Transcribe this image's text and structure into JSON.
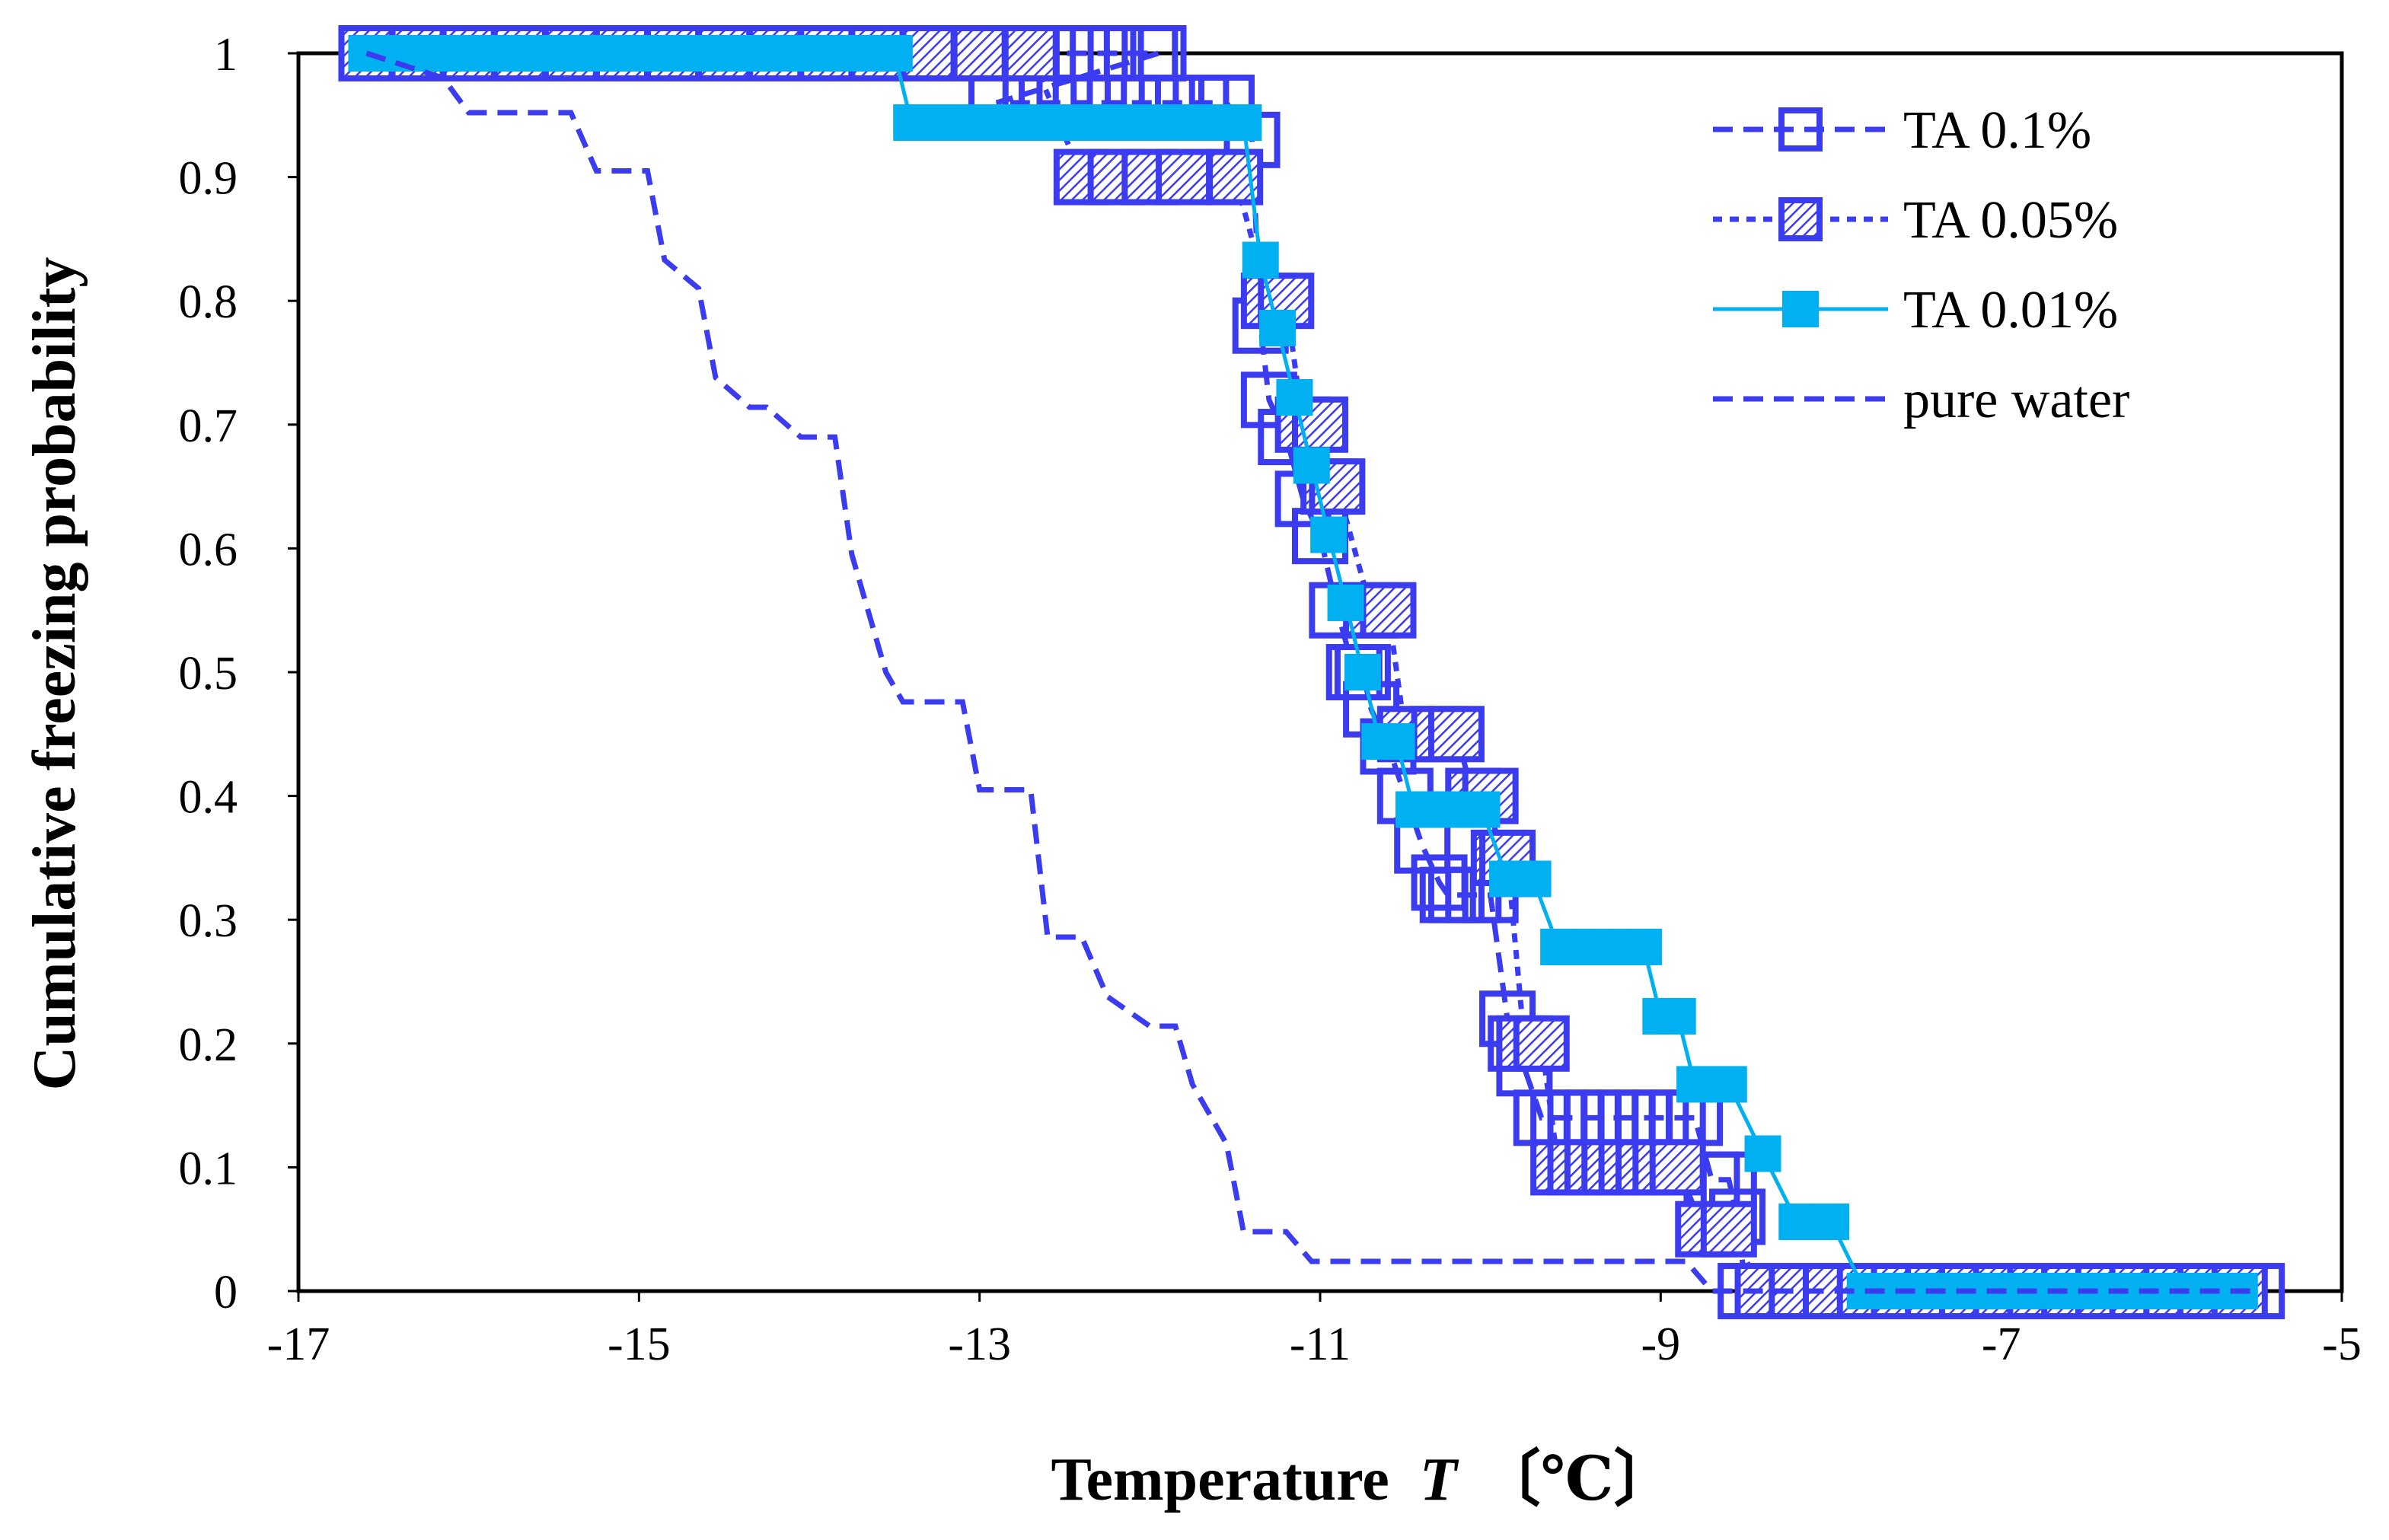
{
  "chart_data": {
    "type": "line",
    "title": "",
    "xlabel": "Temperature",
    "xlabel_symbol": "T",
    "xlabel_unit": "〔℃〕",
    "ylabel": "Cumulative freezing probability",
    "xlim": [
      -17,
      -5
    ],
    "ylim": [
      0,
      1
    ],
    "x_ticks": [
      -17,
      -15,
      -13,
      -11,
      -9,
      -7,
      -5
    ],
    "x_tick_labels": [
      "-17",
      "-15",
      "-13",
      "-11",
      "-9",
      "-7",
      "-5"
    ],
    "y_ticks": [
      0,
      0.1,
      0.2,
      0.3,
      0.4,
      0.5,
      0.6,
      0.7,
      0.8,
      0.9,
      1
    ],
    "y_tick_labels": [
      "0",
      "0.1",
      "0.2",
      "0.3",
      "0.4",
      "0.5",
      "0.6",
      "0.7",
      "0.8",
      "0.9",
      "1"
    ],
    "grid": false,
    "legend_position": "top-right",
    "series": [
      {
        "name": "TA 0.1%",
        "color": "#3b3bf0",
        "line": "dashed",
        "marker": "open-square",
        "x": [
          -16.6,
          -16.4,
          -16.2,
          -16.0,
          -15.8,
          -15.6,
          -15.4,
          -15.2,
          -15.0,
          -14.8,
          -14.6,
          -14.4,
          -14.2,
          -14.0,
          -13.8,
          -13.6,
          -13.4,
          -13.2,
          -13.0,
          -12.8,
          -12.6,
          -12.4,
          -12.2,
          -12.0,
          -11.95,
          -12.9,
          -12.7,
          -12.5,
          -12.3,
          -12.1,
          -11.9,
          -11.7,
          -11.55,
          -11.4,
          -11.35,
          -11.3,
          -11.2,
          -11.1,
          -11.0,
          -10.9,
          -10.8,
          -10.75,
          -10.7,
          -10.6,
          -10.5,
          -10.4,
          -10.3,
          -10.25,
          -10.2,
          -10.1,
          -10.0,
          -9.9,
          -9.85,
          -9.8,
          -9.7,
          -9.6,
          -9.5,
          -9.4,
          -9.3,
          -9.2,
          -9.1,
          -9.0,
          -8.9,
          -8.8,
          -8.7,
          -8.6,
          -8.55,
          -8.5,
          -8.3,
          -8.1,
          -7.9,
          -7.7,
          -7.5,
          -7.3,
          -7.1,
          -6.9,
          -6.7,
          -6.5,
          -6.3,
          -6.1,
          -5.9,
          -5.7,
          -5.5
        ],
        "y": [
          1,
          1,
          1,
          1,
          1,
          1,
          1,
          1,
          1,
          1,
          1,
          1,
          1,
          1,
          1,
          1,
          1,
          1,
          1,
          1,
          1,
          1,
          1,
          1,
          1,
          0.96,
          0.96,
          0.96,
          0.96,
          0.96,
          0.96,
          0.96,
          0.96,
          0.93,
          0.78,
          0.72,
          0.69,
          0.64,
          0.61,
          0.55,
          0.5,
          0.5,
          0.47,
          0.44,
          0.4,
          0.36,
          0.33,
          0.32,
          0.32,
          0.32,
          0.32,
          0.22,
          0.2,
          0.18,
          0.14,
          0.14,
          0.14,
          0.14,
          0.14,
          0.14,
          0.14,
          0.14,
          0.14,
          0.14,
          0.09,
          0.09,
          0.06,
          0.0,
          0,
          0,
          0,
          0,
          0,
          0,
          0,
          0,
          0,
          0,
          0,
          0,
          0,
          0,
          0
        ]
      },
      {
        "name": "TA 0.05%",
        "color": "#3b3bf0",
        "line": "dotted",
        "marker": "hatched-square",
        "x": [
          -16.6,
          -16.3,
          -16.0,
          -15.7,
          -15.4,
          -15.1,
          -14.8,
          -14.5,
          -14.2,
          -13.9,
          -13.6,
          -13.3,
          -13.0,
          -12.7,
          -12.4,
          -12.2,
          -12.0,
          -11.8,
          -11.5,
          -11.3,
          -11.2,
          -11.1,
          -11.0,
          -10.95,
          -10.9,
          -10.7,
          -10.6,
          -10.5,
          -10.3,
          -10.2,
          -10.1,
          -10.0,
          -9.95,
          -9.9,
          -9.8,
          -9.7,
          -9.6,
          -9.5,
          -9.4,
          -9.3,
          -9.2,
          -9.1,
          -9.0,
          -8.9,
          -8.75,
          -8.6,
          -8.4,
          -8.2,
          -8.0,
          -7.8,
          -7.6,
          -7.4,
          -7.2,
          -7.0,
          -6.8,
          -6.6,
          -6.4,
          -6.2,
          -6.0,
          -5.8,
          -5.6
        ],
        "y": [
          1,
          1,
          1,
          1,
          1,
          1,
          1,
          1,
          1,
          1,
          1,
          1,
          1,
          1,
          0.9,
          0.9,
          0.9,
          0.9,
          0.9,
          0.8,
          0.8,
          0.7,
          0.7,
          0.65,
          0.65,
          0.55,
          0.55,
          0.45,
          0.45,
          0.45,
          0.4,
          0.4,
          0.35,
          0.35,
          0.2,
          0.2,
          0.1,
          0.1,
          0.1,
          0.1,
          0.1,
          0.1,
          0.1,
          0.1,
          0.05,
          0.05,
          0.0,
          0,
          0,
          0,
          0,
          0,
          0,
          0,
          0,
          0,
          0,
          0,
          0,
          0,
          0
        ]
      },
      {
        "name": "TA 0.01%",
        "color": "#00b0f0",
        "line": "solid",
        "marker": "filled-square",
        "x": [
          -16.6,
          -16.4,
          -16.2,
          -16.0,
          -15.8,
          -15.6,
          -15.4,
          -15.2,
          -15.0,
          -14.8,
          -14.6,
          -14.4,
          -14.2,
          -14.0,
          -13.8,
          -13.6,
          -13.5,
          -13.4,
          -13.2,
          -13.0,
          -12.8,
          -12.6,
          -12.4,
          -12.2,
          -12.0,
          -11.8,
          -11.6,
          -11.45,
          -11.35,
          -11.25,
          -11.15,
          -11.05,
          -10.95,
          -10.85,
          -10.75,
          -10.65,
          -10.55,
          -10.45,
          -10.35,
          -10.25,
          -10.15,
          -10.05,
          -9.9,
          -9.75,
          -9.6,
          -9.5,
          -9.4,
          -9.3,
          -9.2,
          -9.1,
          -9.0,
          -8.9,
          -8.8,
          -8.6,
          -8.4,
          -8.2,
          -8.0,
          -7.8,
          -7.6,
          -7.4,
          -7.2,
          -7.0,
          -6.8,
          -6.6,
          -6.4,
          -6.2,
          -6.0,
          -5.8,
          -5.6
        ],
        "y": [
          1,
          1,
          1,
          1,
          1,
          1,
          1,
          1,
          1,
          1,
          1,
          1,
          1,
          1,
          1,
          1,
          1,
          0.944,
          0.944,
          0.944,
          0.944,
          0.944,
          0.944,
          0.944,
          0.944,
          0.944,
          0.944,
          0.944,
          0.833,
          0.778,
          0.722,
          0.667,
          0.611,
          0.556,
          0.5,
          0.444,
          0.444,
          0.389,
          0.389,
          0.389,
          0.389,
          0.389,
          0.333,
          0.333,
          0.278,
          0.278,
          0.278,
          0.278,
          0.278,
          0.278,
          0.222,
          0.222,
          0.167,
          0.167,
          0.111,
          0.056,
          0.056,
          0.0,
          0,
          0,
          0,
          0,
          0,
          0,
          0,
          0,
          0,
          0,
          0
        ]
      },
      {
        "name": "pure water",
        "color": "#3b3bf0",
        "line": "dashed",
        "marker": "none",
        "x": [
          -16.6,
          -16.15,
          -16.0,
          -15.4,
          -15.25,
          -14.95,
          -14.85,
          -14.65,
          -14.55,
          -14.35,
          -14.25,
          -14.05,
          -13.85,
          -13.75,
          -13.55,
          -13.45,
          -13.1,
          -13.0,
          -12.7,
          -12.6,
          -12.4,
          -12.25,
          -12.0,
          -11.85,
          -11.75,
          -11.55,
          -11.45,
          -11.2,
          -11.05,
          -9.0,
          -8.85,
          -8.7,
          -5.5
        ],
        "y": [
          1,
          0.98,
          0.952,
          0.952,
          0.905,
          0.905,
          0.833,
          0.81,
          0.738,
          0.714,
          0.714,
          0.69,
          0.69,
          0.595,
          0.5,
          0.476,
          0.476,
          0.405,
          0.405,
          0.286,
          0.286,
          0.238,
          0.214,
          0.214,
          0.167,
          0.119,
          0.048,
          0.048,
          0.024,
          0.024,
          0.024,
          0.0,
          0.0
        ]
      }
    ]
  }
}
